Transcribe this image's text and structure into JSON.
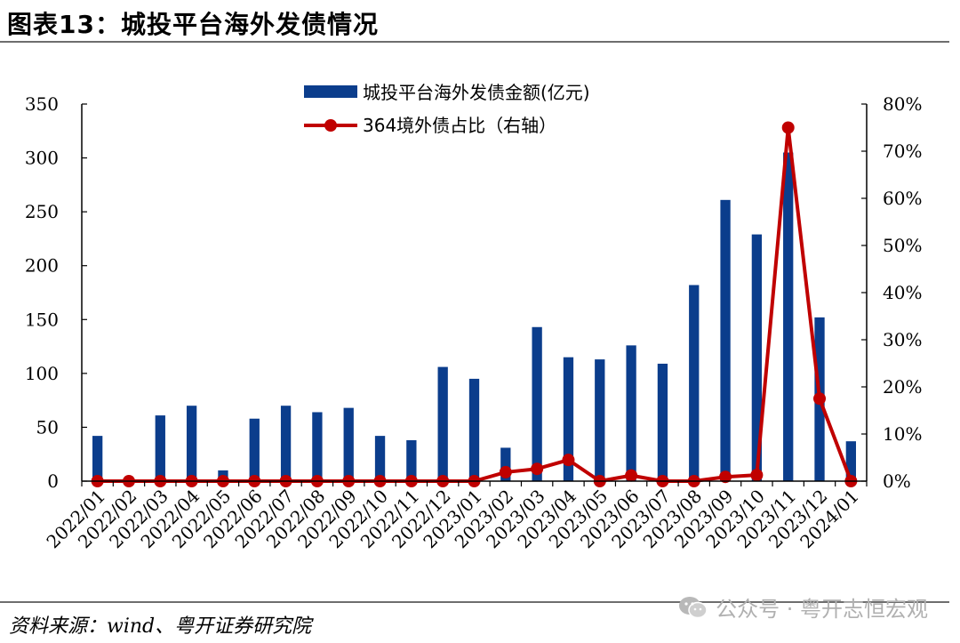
{
  "title": "图表13：城投平台海外发债情况",
  "source": "资料来源：wind、粤开证券研究院",
  "watermark": "公众号 · 粤开志恒宏观",
  "chart_data": {
    "type": "bar+line",
    "categories": [
      "2022/01",
      "2022/02",
      "2022/03",
      "2022/04",
      "2022/05",
      "2022/06",
      "2022/07",
      "2022/08",
      "2022/09",
      "2022/10",
      "2022/11",
      "2022/12",
      "2023/01",
      "2023/02",
      "2023/03",
      "2023/04",
      "2023/05",
      "2023/06",
      "2023/07",
      "2023/08",
      "2023/09",
      "2023/10",
      "2023/11",
      "2023/12",
      "2024/01"
    ],
    "series": [
      {
        "name": "城投平台海外发债金额(亿元)",
        "type": "bar",
        "axis": "left",
        "color": "#0b3d8c",
        "values": [
          42,
          0,
          61,
          70,
          10,
          58,
          70,
          64,
          68,
          42,
          38,
          106,
          95,
          31,
          143,
          115,
          113,
          126,
          109,
          182,
          261,
          229,
          305,
          152,
          37
        ]
      },
      {
        "name": "364境外债占比（右轴）",
        "type": "line",
        "axis": "right",
        "color": "#c00000",
        "values": [
          0,
          0,
          0,
          0,
          0,
          0,
          0,
          0,
          0,
          0,
          0,
          0,
          0,
          1.9,
          2.6,
          4.5,
          0,
          1.2,
          0,
          0,
          0.9,
          1.3,
          75,
          17.5,
          0
        ]
      }
    ],
    "y_left": {
      "min": 0,
      "max": 350,
      "ticks": [
        0,
        50,
        100,
        150,
        200,
        250,
        300,
        350
      ]
    },
    "y_right": {
      "min": 0,
      "max": 80,
      "ticks": [
        "0%",
        "10%",
        "20%",
        "30%",
        "40%",
        "50%",
        "60%",
        "70%",
        "80%"
      ]
    },
    "legend_placement": "top-center"
  }
}
